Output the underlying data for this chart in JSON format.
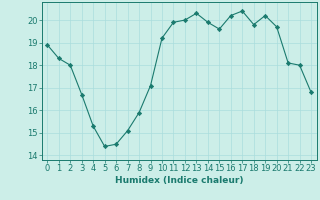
{
  "x": [
    0,
    1,
    2,
    3,
    4,
    5,
    6,
    7,
    8,
    9,
    10,
    11,
    12,
    13,
    14,
    15,
    16,
    17,
    18,
    19,
    20,
    21,
    22,
    23
  ],
  "y": [
    18.9,
    18.3,
    18.0,
    16.7,
    15.3,
    14.4,
    14.5,
    15.1,
    15.9,
    17.1,
    19.2,
    19.9,
    20.0,
    20.3,
    19.9,
    19.6,
    20.2,
    20.4,
    19.8,
    20.2,
    19.7,
    18.1,
    18.0,
    16.8
  ],
  "line_color": "#1a7a6e",
  "marker": "D",
  "marker_size": 2.2,
  "bg_color": "#cceee8",
  "grid_color": "#aadddd",
  "xlabel": "Humidex (Indice chaleur)",
  "xlim": [
    -0.5,
    23.5
  ],
  "ylim": [
    13.8,
    20.8
  ],
  "yticks": [
    14,
    15,
    16,
    17,
    18,
    19,
    20
  ],
  "xticks": [
    0,
    1,
    2,
    3,
    4,
    5,
    6,
    7,
    8,
    9,
    10,
    11,
    12,
    13,
    14,
    15,
    16,
    17,
    18,
    19,
    20,
    21,
    22,
    23
  ],
  "xlabel_fontsize": 6.5,
  "tick_fontsize": 6.0
}
